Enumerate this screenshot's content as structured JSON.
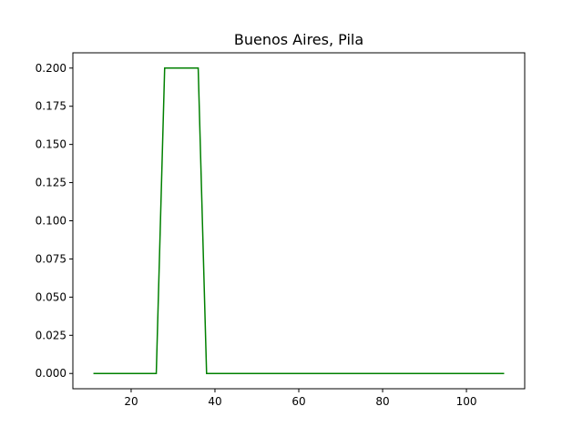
{
  "chart_data": {
    "type": "line",
    "title": "Buenos Aires, Pila",
    "xlabel": "",
    "ylabel": "",
    "xlim": [
      6.1,
      113.9
    ],
    "ylim": [
      -0.01,
      0.21
    ],
    "xticks": [
      20,
      40,
      60,
      80,
      100
    ],
    "xtick_labels": [
      "20",
      "40",
      "60",
      "80",
      "100"
    ],
    "yticks": [
      0.0,
      0.025,
      0.05,
      0.075,
      0.1,
      0.125,
      0.15,
      0.175,
      0.2
    ],
    "ytick_labels": [
      "0.000",
      "0.025",
      "0.050",
      "0.075",
      "0.100",
      "0.125",
      "0.150",
      "0.175",
      "0.200"
    ],
    "grid": false,
    "series": [
      {
        "color": "#008000",
        "x": [
          11,
          26,
          28,
          36,
          38,
          109
        ],
        "y": [
          0.0,
          0.0,
          0.2,
          0.2,
          0.0,
          0.0
        ]
      }
    ]
  }
}
